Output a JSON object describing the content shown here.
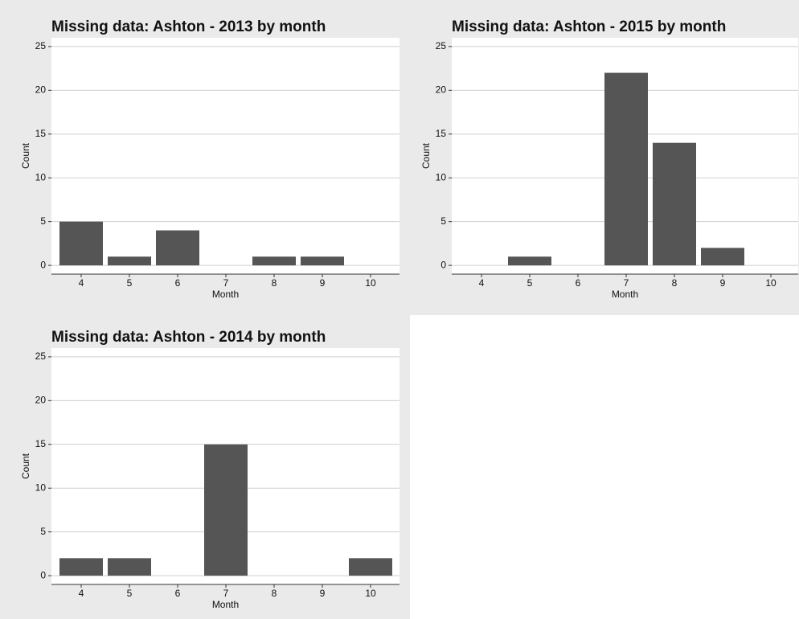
{
  "chart_data": [
    {
      "type": "bar",
      "title": "Missing data: Ashton - 2013 by month",
      "x_label": "Month",
      "y_label": "Count",
      "categories": [
        4,
        5,
        6,
        7,
        8,
        9,
        10
      ],
      "values": [
        5,
        1,
        4,
        0,
        1,
        1,
        0
      ],
      "color": "#555555",
      "ylim": [
        -1,
        26
      ],
      "yticks": [
        0,
        5,
        10,
        15,
        20,
        25
      ],
      "grid": true
    },
    {
      "type": "bar",
      "title": "Missing data: Ashton - 2015 by month",
      "x_label": "Month",
      "y_label": "Count",
      "categories": [
        4,
        5,
        6,
        7,
        8,
        9,
        10
      ],
      "values": [
        0,
        1,
        0,
        22,
        14,
        2,
        0
      ],
      "color": "#555555",
      "ylim": [
        -1,
        26
      ],
      "yticks": [
        0,
        5,
        10,
        15,
        20,
        25
      ],
      "grid": true
    },
    {
      "type": "bar",
      "title": "Missing data: Ashton - 2014 by month",
      "x_label": "Month",
      "y_label": "Count",
      "categories": [
        4,
        5,
        6,
        7,
        8,
        9,
        10
      ],
      "values": [
        2,
        2,
        0,
        15,
        0,
        0,
        2
      ],
      "color": "#555555",
      "ylim": [
        -1,
        26
      ],
      "yticks": [
        0,
        5,
        10,
        15,
        20,
        25
      ],
      "grid": true
    }
  ]
}
